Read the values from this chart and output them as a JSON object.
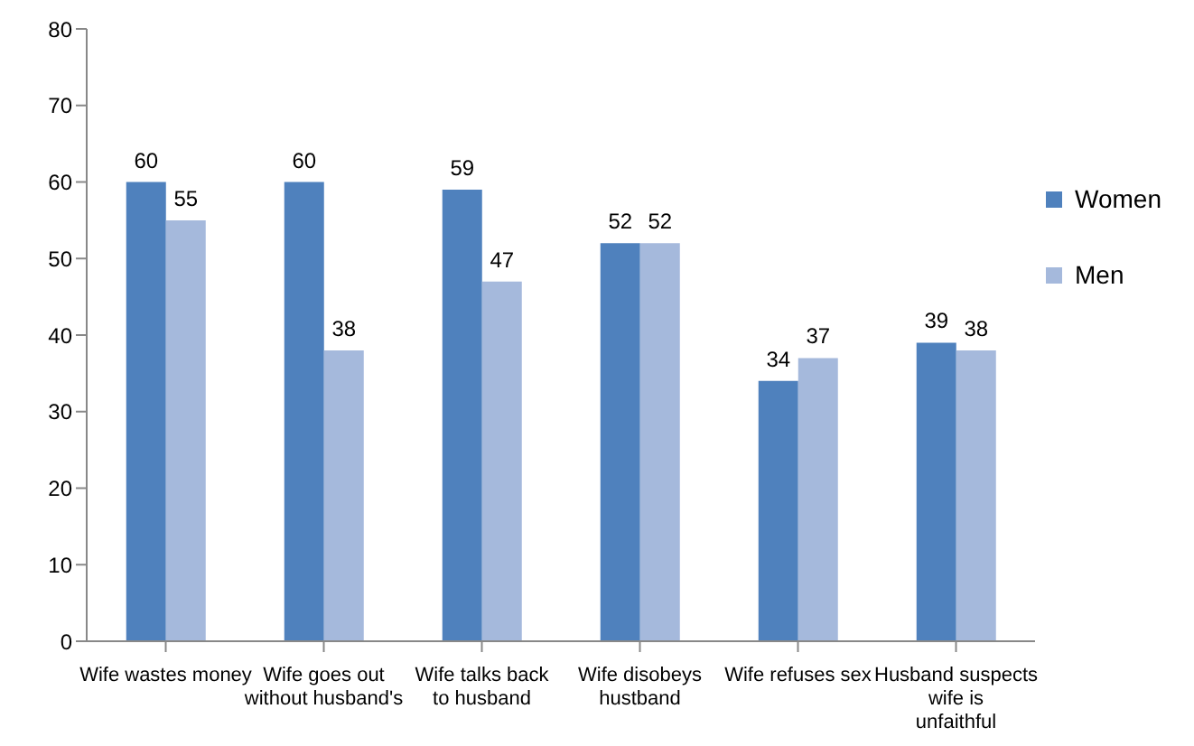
{
  "chart_data": {
    "type": "bar",
    "categories": [
      "Wife wastes money",
      "Wife goes out without husband's",
      "Wife talks back to husband",
      "Wife disobeys hustband",
      "Wife refuses sex",
      "Husband suspects wife is unfaithful"
    ],
    "series": [
      {
        "name": "Women",
        "color": "#4f81bd",
        "values": [
          60,
          60,
          59,
          52,
          34,
          39
        ]
      },
      {
        "name": "Men",
        "color": "#a5b9dc",
        "values": [
          55,
          38,
          47,
          52,
          37,
          38
        ]
      }
    ],
    "ylim": [
      0,
      80
    ],
    "yticks": [
      0,
      10,
      20,
      30,
      40,
      50,
      60,
      70,
      80
    ],
    "data_labels": true,
    "grid": false,
    "legend": "right"
  }
}
